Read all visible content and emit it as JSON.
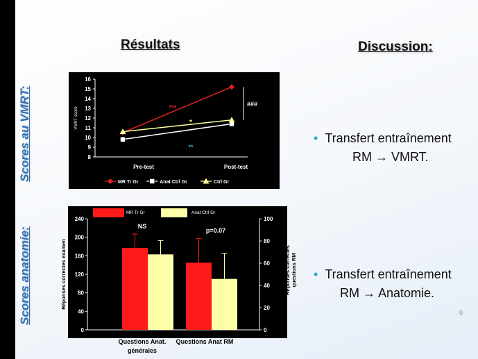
{
  "slide": {
    "results_title": "Résultats",
    "discussion_title": "Discussion:",
    "vmrt_section_label": "Scores au VMRT:",
    "anatomy_section_label": "Scores anatomie:",
    "bullet1_line1": "Transfert entraînement",
    "bullet1_line2": "RM → VMRT.",
    "bullet2_line1": "Transfert entraînement",
    "bullet2_line2": "RM → Anatomie.",
    "page_number": "9",
    "bullet_color": "#2aa7d8",
    "section_label_color": "#2f6fb4"
  },
  "chart_data": [
    {
      "type": "line",
      "categories": [
        "Pre-test",
        "Post-test"
      ],
      "ylabel": "VMRT score",
      "ylim": [
        8,
        16
      ],
      "yticks": [
        8,
        9,
        10,
        11,
        12,
        13,
        14,
        15,
        16
      ],
      "background": "#000000",
      "series": [
        {
          "name": "MR Tr Gr",
          "values": [
            10.5,
            15.2
          ],
          "color": "#e02020",
          "marker": "diamond"
        },
        {
          "name": "Anat Ctrl Gr",
          "values": [
            9.8,
            11.4
          ],
          "color": "#ffffff",
          "marker": "square"
        },
        {
          "name": "Ctrl Gr",
          "values": [
            10.6,
            11.8
          ],
          "color": "#ffff99",
          "marker": "triangle"
        }
      ],
      "annotations": {
        "mr_sig": "***",
        "ctrl_sig": "*",
        "anat_sig": "**",
        "bracket_sig": "###"
      },
      "legend": "bottom"
    },
    {
      "type": "bar",
      "categories": [
        "Questions Anat. générales",
        "Questions Anat RM"
      ],
      "category_line1": [
        "Questions Anat.",
        "Questions Anat RM"
      ],
      "category_line2": [
        "générales",
        ""
      ],
      "ylabel_left": "Réponses correctes examen",
      "ylabel_right": "Réponses correctes questions RM",
      "ylim_left": [
        0,
        240
      ],
      "yticks_left": [
        0,
        40,
        80,
        120,
        160,
        200,
        240
      ],
      "ylim_right": [
        0,
        100
      ],
      "yticks_right": [
        0,
        20,
        40,
        60,
        80,
        100
      ],
      "background": "#000000",
      "series": [
        {
          "name": "MR Tr Gr",
          "color": "#ff1a1a",
          "values": [
            177,
            145
          ],
          "error": [
            30,
            52
          ]
        },
        {
          "name": "Anat Ctrl Gr",
          "color": "#ffffaa",
          "values": [
            163,
            110
          ],
          "error": [
            30,
            55
          ]
        }
      ],
      "annotations": [
        "NS",
        "p=0.07"
      ],
      "legend": "top"
    }
  ]
}
